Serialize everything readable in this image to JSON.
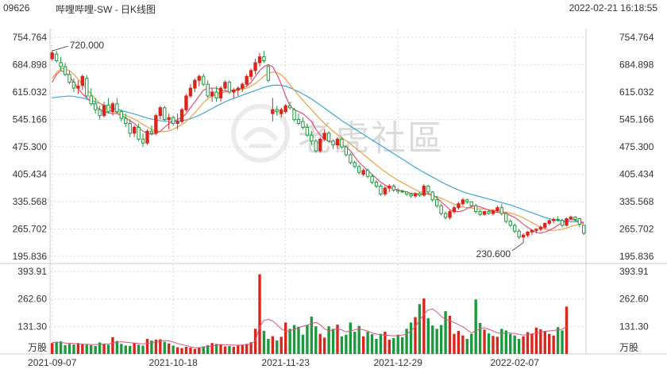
{
  "header": {
    "code": "09626",
    "name": "哔哩哔哩-SW - 日K线图",
    "datetime": "2022-02-21 16:18:55"
  },
  "watermark": {
    "text": "老虎社區",
    "icon": "tiger-logo-icon"
  },
  "colors": {
    "up": "#d9261c",
    "down": "#1a9a3c",
    "ma5": "#e0507a",
    "ma10": "#f0a040",
    "ma20": "#3ea6d8",
    "grid": "#d8d8d8"
  },
  "chart_data": {
    "type": "candlestick",
    "price_axis": {
      "ylim": [
        195.836,
        754.764
      ],
      "ticks": [
        "754.764",
        "684.898",
        "615.032",
        "545.166",
        "475.300",
        "405.434",
        "335.568",
        "265.702",
        "195.836"
      ]
    },
    "volume_axis": {
      "ylim": [
        0,
        393.91
      ],
      "ticks": [
        "393.91",
        "262.60",
        "131.30"
      ],
      "unit": "万股"
    },
    "x_ticks": [
      "2021-09-07",
      "2021-10-18",
      "2021-11-23",
      "2021-12-29",
      "2022-02-07"
    ],
    "annotations": {
      "high": "720.000",
      "low": "230.600"
    },
    "ohlc": [
      [
        700,
        722,
        695,
        715
      ],
      [
        712,
        720,
        690,
        695
      ],
      [
        690,
        705,
        670,
        680
      ],
      [
        680,
        690,
        655,
        660
      ],
      [
        660,
        670,
        635,
        640
      ],
      [
        640,
        650,
        615,
        625
      ],
      [
        625,
        645,
        610,
        630
      ],
      [
        632,
        660,
        620,
        655
      ],
      [
        650,
        658,
        600,
        605
      ],
      [
        605,
        625,
        580,
        585
      ],
      [
        585,
        600,
        560,
        570
      ],
      [
        570,
        580,
        545,
        555
      ],
      [
        555,
        590,
        550,
        580
      ],
      [
        582,
        600,
        560,
        565
      ],
      [
        565,
        590,
        555,
        585
      ],
      [
        585,
        600,
        560,
        565
      ],
      [
        565,
        570,
        540,
        548
      ],
      [
        548,
        560,
        525,
        535
      ],
      [
        535,
        545,
        500,
        510
      ],
      [
        510,
        530,
        500,
        525
      ],
      [
        525,
        535,
        490,
        495
      ],
      [
        495,
        510,
        475,
        485
      ],
      [
        485,
        520,
        480,
        515
      ],
      [
        515,
        530,
        505,
        510
      ],
      [
        510,
        560,
        505,
        555
      ],
      [
        555,
        580,
        545,
        575
      ],
      [
        575,
        580,
        540,
        545
      ],
      [
        545,
        560,
        520,
        550
      ],
      [
        550,
        555,
        530,
        535
      ],
      [
        535,
        560,
        520,
        540
      ],
      [
        540,
        575,
        535,
        570
      ],
      [
        570,
        610,
        565,
        605
      ],
      [
        605,
        635,
        600,
        625
      ],
      [
        625,
        650,
        615,
        645
      ],
      [
        645,
        660,
        630,
        655
      ],
      [
        655,
        662,
        630,
        635
      ],
      [
        635,
        645,
        600,
        605
      ],
      [
        605,
        625,
        590,
        615
      ],
      [
        615,
        630,
        590,
        600
      ],
      [
        600,
        630,
        590,
        625
      ],
      [
        625,
        645,
        620,
        640
      ],
      [
        640,
        645,
        610,
        615
      ],
      [
        615,
        625,
        600,
        620
      ],
      [
        620,
        630,
        605,
        625
      ],
      [
        625,
        640,
        615,
        635
      ],
      [
        635,
        660,
        630,
        655
      ],
      [
        655,
        675,
        645,
        670
      ],
      [
        670,
        700,
        660,
        690
      ],
      [
        690,
        715,
        680,
        705
      ],
      [
        705,
        720,
        690,
        695
      ],
      [
        680,
        685,
        640,
        645
      ],
      [
        560,
        600,
        540,
        570
      ],
      [
        570,
        580,
        555,
        565
      ],
      [
        560,
        575,
        550,
        570
      ],
      [
        565,
        585,
        560,
        580
      ],
      [
        580,
        590,
        570,
        575
      ],
      [
        570,
        575,
        540,
        545
      ],
      [
        545,
        560,
        530,
        535
      ],
      [
        540,
        550,
        520,
        525
      ],
      [
        525,
        535,
        500,
        505
      ],
      [
        505,
        515,
        480,
        490
      ],
      [
        490,
        495,
        460,
        465
      ],
      [
        465,
        500,
        460,
        495
      ],
      [
        495,
        520,
        490,
        510
      ],
      [
        510,
        515,
        485,
        490
      ],
      [
        490,
        495,
        470,
        480
      ],
      [
        480,
        500,
        470,
        495
      ],
      [
        495,
        500,
        470,
        475
      ],
      [
        475,
        480,
        450,
        455
      ],
      [
        455,
        460,
        430,
        435
      ],
      [
        435,
        440,
        420,
        425
      ],
      [
        425,
        430,
        405,
        410
      ],
      [
        405,
        420,
        400,
        415
      ],
      [
        415,
        420,
        395,
        400
      ],
      [
        400,
        405,
        380,
        385
      ],
      [
        385,
        390,
        370,
        375
      ],
      [
        375,
        380,
        350,
        355
      ],
      [
        355,
        375,
        350,
        370
      ],
      [
        370,
        380,
        360,
        375
      ],
      [
        375,
        380,
        360,
        365
      ],
      [
        365,
        370,
        355,
        362
      ],
      [
        362,
        366,
        358,
        360
      ],
      [
        360,
        362,
        350,
        355
      ],
      [
        355,
        358,
        345,
        350
      ],
      [
        350,
        360,
        345,
        356
      ],
      [
        356,
        360,
        348,
        352
      ],
      [
        352,
        380,
        348,
        375
      ],
      [
        375,
        378,
        355,
        360
      ],
      [
        360,
        362,
        335,
        340
      ],
      [
        340,
        350,
        320,
        325
      ],
      [
        325,
        330,
        300,
        305
      ],
      [
        305,
        310,
        290,
        295
      ],
      [
        295,
        315,
        290,
        310
      ],
      [
        310,
        325,
        305,
        320
      ],
      [
        320,
        335,
        315,
        330
      ],
      [
        330,
        345,
        325,
        340
      ],
      [
        340,
        343,
        330,
        335
      ],
      [
        335,
        336,
        320,
        325
      ],
      [
        325,
        330,
        305,
        310
      ],
      [
        310,
        315,
        298,
        303
      ],
      [
        303,
        312,
        300,
        310
      ],
      [
        310,
        315,
        302,
        305
      ],
      [
        305,
        316,
        300,
        312
      ],
      [
        312,
        325,
        308,
        320
      ],
      [
        320,
        330,
        300,
        305
      ],
      [
        305,
        310,
        280,
        285
      ],
      [
        285,
        290,
        270,
        275
      ],
      [
        275,
        280,
        255,
        260
      ],
      [
        260,
        265,
        240,
        245
      ],
      [
        245,
        255,
        230,
        250
      ],
      [
        250,
        260,
        245,
        258
      ],
      [
        258,
        265,
        250,
        262
      ],
      [
        262,
        268,
        255,
        265
      ],
      [
        265,
        275,
        260,
        270
      ],
      [
        270,
        282,
        265,
        280
      ],
      [
        280,
        290,
        275,
        287
      ],
      [
        287,
        295,
        280,
        290
      ],
      [
        290,
        298,
        285,
        288
      ],
      [
        288,
        292,
        270,
        275
      ],
      [
        275,
        295,
        272,
        292
      ],
      [
        292,
        300,
        288,
        296
      ],
      [
        296,
        298,
        285,
        290
      ],
      [
        292,
        294,
        270,
        278
      ],
      [
        275,
        276,
        250,
        255
      ]
    ],
    "volume": [
      52,
      58,
      60,
      42,
      48,
      45,
      52,
      46,
      44,
      42,
      38,
      55,
      48,
      44,
      80,
      62,
      48,
      40,
      38,
      52,
      44,
      40,
      72,
      64,
      68,
      70,
      58,
      50,
      40,
      32,
      28,
      34,
      30,
      24,
      30,
      36,
      42,
      52,
      48,
      46,
      36,
      38,
      34,
      40,
      44,
      48,
      56,
      120,
      380,
      110,
      72,
      85,
      64,
      82,
      150,
      120,
      138,
      130,
      92,
      138,
      178,
      132,
      96,
      78,
      132,
      120,
      140,
      84,
      92,
      150,
      106,
      134,
      84,
      106,
      94,
      72,
      96,
      106,
      68,
      76,
      92,
      80,
      120,
      150,
      176,
      238,
      265,
      170,
      136,
      120,
      138,
      204,
      182,
      96,
      110,
      88,
      72,
      96,
      260,
      148,
      116,
      98,
      86,
      82,
      120,
      112,
      96,
      88,
      72,
      84,
      104,
      96,
      126,
      118,
      110,
      96,
      88,
      128,
      112,
      226
    ],
    "ma5": [
      640,
      660,
      670,
      665,
      655,
      640,
      625,
      610,
      600,
      590,
      580,
      570,
      565,
      562,
      560,
      560,
      555,
      550,
      542,
      535,
      525,
      515,
      510,
      507,
      510,
      515,
      525,
      535,
      540,
      545,
      550,
      560,
      575,
      590,
      605,
      620,
      625,
      625,
      625,
      620,
      618,
      618,
      620,
      622,
      625,
      630,
      640,
      655,
      670,
      680,
      685,
      680,
      660,
      635,
      605,
      580,
      570,
      565,
      560,
      550,
      540,
      520,
      505,
      495,
      490,
      485,
      482,
      480,
      475,
      465,
      450,
      435,
      425,
      415,
      405,
      395,
      385,
      378,
      372,
      368,
      365,
      363,
      360,
      357,
      355,
      354,
      355,
      356,
      352,
      345,
      335,
      325,
      315,
      310,
      310,
      312,
      318,
      323,
      325,
      322,
      318,
      314,
      310,
      308,
      308,
      305,
      300,
      295,
      287,
      278,
      270,
      262,
      257,
      255,
      258,
      262,
      268,
      275,
      282,
      287,
      290,
      288,
      285,
      280
    ],
    "ma10": [
      650,
      665,
      675,
      675,
      670,
      660,
      648,
      635,
      622,
      610,
      598,
      587,
      578,
      570,
      565,
      563,
      560,
      556,
      551,
      546,
      540,
      532,
      526,
      520,
      516,
      514,
      514,
      516,
      520,
      526,
      532,
      540,
      550,
      562,
      575,
      588,
      598,
      605,
      610,
      613,
      615,
      617,
      618,
      620,
      622,
      625,
      630,
      637,
      646,
      656,
      663,
      666,
      665,
      659,
      648,
      634,
      620,
      607,
      594,
      582,
      570,
      558,
      546,
      535,
      525,
      515,
      506,
      498,
      491,
      483,
      474,
      465,
      456,
      447,
      438,
      429,
      420,
      412,
      404,
      397,
      390,
      384,
      378,
      372,
      366,
      361,
      357,
      354,
      351,
      348,
      344,
      339,
      334,
      329,
      325,
      322,
      320,
      319,
      318,
      317,
      316,
      315,
      314,
      312,
      310,
      308,
      306,
      303,
      299,
      294,
      288,
      282,
      276,
      270,
      266,
      263,
      262,
      263,
      265,
      268,
      272,
      275,
      278,
      279
    ],
    "ma20": [
      600,
      602,
      603,
      604,
      605,
      604,
      602,
      600,
      597,
      594,
      590,
      586,
      582,
      578,
      574,
      571,
      568,
      565,
      562,
      559,
      556,
      552,
      549,
      546,
      544,
      542,
      541,
      540,
      540,
      541,
      542,
      544,
      547,
      551,
      556,
      561,
      567,
      573,
      579,
      585,
      590,
      595,
      599,
      603,
      607,
      611,
      615,
      619,
      623,
      627,
      630,
      632,
      633,
      632,
      630,
      626,
      621,
      616,
      610,
      604,
      597,
      590,
      582,
      574,
      566,
      558,
      550,
      542,
      535,
      528,
      521,
      514,
      507,
      500,
      493,
      486,
      479,
      472,
      465,
      458,
      451,
      444,
      437,
      430,
      423,
      416,
      410,
      404,
      398,
      392,
      386,
      380,
      375,
      370,
      365,
      361,
      357,
      354,
      351,
      348,
      345,
      342,
      339,
      336,
      333,
      330,
      327,
      323,
      319,
      315,
      311,
      307,
      303,
      299,
      295,
      292,
      289,
      287,
      286,
      285,
      284,
      284,
      284,
      283
    ],
    "vol_ma5": [
      55,
      56,
      55,
      52,
      51,
      50,
      49,
      47,
      46,
      45,
      45,
      46,
      47,
      48,
      52,
      56,
      58,
      56,
      54,
      52,
      50,
      48,
      50,
      54,
      58,
      62,
      64,
      62,
      57,
      50,
      44,
      40,
      34,
      30,
      30,
      32,
      35,
      38,
      42,
      45,
      44,
      43,
      42,
      42,
      42,
      44,
      48,
      62,
      130,
      160,
      165,
      158,
      140,
      120,
      108,
      110,
      118,
      125,
      132,
      138,
      145,
      150,
      140,
      120,
      110,
      115,
      120,
      115,
      105,
      110,
      115,
      120,
      115,
      110,
      100,
      95,
      92,
      90,
      88,
      86,
      88,
      90,
      95,
      110,
      130,
      160,
      190,
      210,
      215,
      200,
      180,
      165,
      160,
      150,
      140,
      130,
      115,
      100,
      110,
      120,
      125,
      118,
      110,
      100,
      98,
      100,
      100,
      98,
      94,
      90,
      92,
      96,
      100,
      104,
      108,
      110,
      112,
      115,
      118,
      130
    ]
  }
}
